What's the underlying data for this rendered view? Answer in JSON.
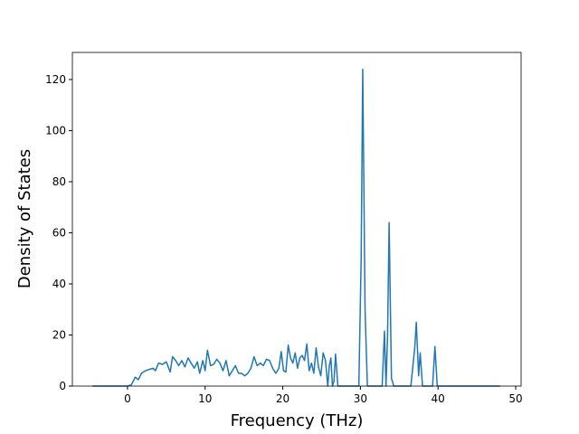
{
  "chart_data": {
    "type": "line",
    "xlabel": "Frequency (THz)",
    "ylabel": "Density of States",
    "x": [
      -4.5,
      0,
      0.5,
      1,
      1.4,
      1.8,
      2.3,
      2.8,
      3.3,
      3.6,
      4,
      4.5,
      5,
      5.5,
      5.8,
      6.2,
      6.6,
      7,
      7.4,
      7.8,
      8.2,
      8.6,
      9,
      9.3,
      9.7,
      10,
      10.3,
      10.7,
      11.1,
      11.5,
      11.9,
      12.3,
      12.7,
      13.1,
      13.5,
      13.9,
      14.3,
      14.7,
      15.1,
      15.5,
      15.9,
      16.3,
      16.7,
      17.1,
      17.5,
      17.9,
      18.3,
      18.7,
      19.1,
      19.5,
      19.8,
      20.1,
      20.4,
      20.7,
      21,
      21.3,
      21.6,
      21.9,
      22.2,
      22.5,
      22.8,
      23.1,
      23.4,
      23.7,
      24,
      24.3,
      24.6,
      24.9,
      25.2,
      25.5,
      25.8,
      26,
      26.2,
      26.4,
      26.6,
      26.8,
      27.1,
      29.8,
      30.1,
      30.3,
      30.6,
      30.9,
      32.8,
      33.1,
      33.3,
      33.5,
      33.7,
      34,
      34.3,
      36.5,
      37,
      37.2,
      37.5,
      37.7,
      38,
      39.3,
      39.6,
      39.9,
      48
    ],
    "series": [
      {
        "color": "#1f77b4",
        "values": [
          0,
          0,
          0.5,
          3.5,
          2.5,
          5,
          6,
          6.5,
          7,
          6,
          9,
          8.5,
          9.5,
          5.5,
          11.5,
          10,
          8,
          10,
          7.5,
          11,
          9,
          7,
          9.5,
          5,
          10,
          6,
          14,
          8,
          8.5,
          10.5,
          9,
          6,
          10,
          4,
          6,
          8,
          5,
          5,
          4,
          5,
          7,
          11.5,
          8,
          9,
          8,
          10.5,
          10,
          7,
          5,
          7,
          13.5,
          6,
          5.5,
          16,
          11,
          9,
          13,
          7,
          11,
          12,
          10,
          16.5,
          6,
          9,
          5,
          15,
          7.5,
          4,
          13,
          10,
          0,
          8,
          11,
          0,
          2,
          12.5,
          0,
          0,
          50,
          124,
          30,
          0,
          0,
          21.5,
          0,
          20,
          64,
          3,
          0,
          0,
          15,
          25,
          4,
          13,
          0,
          0,
          15.5,
          0,
          0
        ]
      }
    ],
    "xlim": [
      -7.1,
      50.7
    ],
    "ylim": [
      0,
      130.6
    ],
    "xticks": [
      0,
      10,
      20,
      30,
      40,
      50
    ],
    "yticks": [
      0,
      20,
      40,
      60,
      80,
      100,
      120
    ],
    "grid": false
  }
}
